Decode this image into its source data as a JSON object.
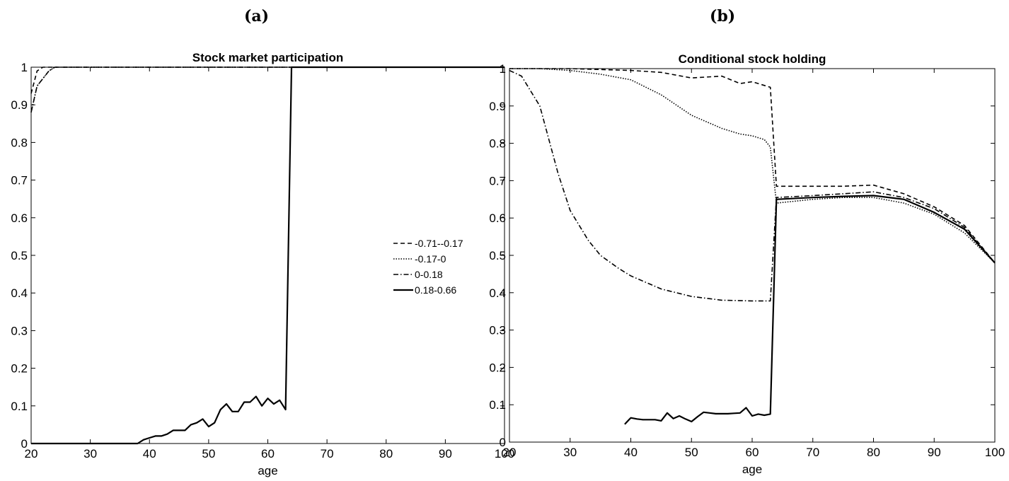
{
  "panels": {
    "a_label": "(a)",
    "b_label": "(b)"
  },
  "chart_data": [
    {
      "type": "line",
      "title": "Stock market participation",
      "xlabel": "age",
      "ylabel": "",
      "xlim": [
        20,
        100
      ],
      "ylim": [
        0,
        1
      ],
      "xticks": [
        20,
        30,
        40,
        50,
        60,
        70,
        80,
        90,
        100
      ],
      "yticks": [
        0,
        0.1,
        0.2,
        0.3,
        0.4,
        0.5,
        0.6,
        0.7,
        0.8,
        0.9,
        1
      ],
      "xtick_labels": [
        "20",
        "30",
        "40",
        "50",
        "60",
        "70",
        "80",
        "90",
        "100"
      ],
      "ytick_labels": [
        "0",
        "0.1",
        "0.2",
        "0.3",
        "0.4",
        "0.5",
        "0.6",
        "0.7",
        "0.8",
        "0.9",
        "1"
      ],
      "grid": false,
      "legend_position": "right",
      "series": [
        {
          "name": "-0.71--0.17",
          "style": "dashed",
          "x": [
            20,
            21,
            22,
            23,
            24,
            25,
            100
          ],
          "y": [
            0.93,
            0.99,
            1,
            1,
            1,
            1,
            1
          ]
        },
        {
          "name": "-0.17-0",
          "style": "dotted",
          "x": [
            20,
            21,
            22,
            23,
            24,
            25,
            100
          ],
          "y": [
            0.88,
            0.95,
            0.97,
            0.99,
            1,
            1,
            1
          ]
        },
        {
          "name": "0-0.18",
          "style": "dashdot",
          "x": [
            20,
            21,
            22,
            23,
            24,
            25,
            100
          ],
          "y": [
            0.88,
            0.95,
            0.97,
            0.99,
            1,
            1,
            1
          ]
        },
        {
          "name": "0.18-0.66",
          "style": "solid",
          "x": [
            20,
            38,
            39,
            40,
            41,
            42,
            43,
            44,
            45,
            46,
            47,
            48,
            49,
            50,
            51,
            52,
            53,
            54,
            55,
            56,
            57,
            58,
            59,
            60,
            61,
            62,
            63,
            64,
            100
          ],
          "y": [
            0,
            0,
            0.01,
            0.015,
            0.02,
            0.02,
            0.025,
            0.035,
            0.035,
            0.035,
            0.05,
            0.055,
            0.065,
            0.045,
            0.055,
            0.09,
            0.105,
            0.085,
            0.085,
            0.11,
            0.11,
            0.125,
            0.1,
            0.12,
            0.105,
            0.115,
            0.09,
            1,
            1
          ]
        }
      ]
    },
    {
      "type": "line",
      "title": "Conditional stock holding",
      "xlabel": "age",
      "ylabel": "",
      "xlim": [
        20,
        100
      ],
      "ylim": [
        0,
        1
      ],
      "xticks": [
        20,
        30,
        40,
        50,
        60,
        70,
        80,
        90,
        100
      ],
      "yticks": [
        0,
        0.1,
        0.2,
        0.3,
        0.4,
        0.5,
        0.6,
        0.7,
        0.8,
        0.9,
        1
      ],
      "xtick_labels": [
        "20",
        "30",
        "40",
        "50",
        "60",
        "70",
        "80",
        "90",
        "100"
      ],
      "ytick_labels": [
        "0",
        "0.1",
        "0.2",
        "0.3",
        "0.4",
        "0.5",
        "0.6",
        "0.7",
        "0.8",
        "0.9",
        "1"
      ],
      "grid": false,
      "series": [
        {
          "name": "-0.71--0.17",
          "style": "dashed",
          "x": [
            20,
            30,
            40,
            45,
            50,
            55,
            58,
            60,
            63,
            64,
            70,
            75,
            80,
            85,
            90,
            95,
            100
          ],
          "y": [
            1,
            1,
            0.995,
            0.99,
            0.975,
            0.98,
            0.96,
            0.965,
            0.95,
            0.685,
            0.685,
            0.685,
            0.688,
            0.665,
            0.63,
            0.58,
            0.48
          ]
        },
        {
          "name": "-0.17-0",
          "style": "dotted",
          "x": [
            20,
            25,
            30,
            35,
            40,
            45,
            50,
            55,
            58,
            60,
            62,
            63,
            64,
            70,
            75,
            80,
            85,
            90,
            95,
            100
          ],
          "y": [
            1,
            1,
            0.995,
            0.985,
            0.97,
            0.93,
            0.875,
            0.84,
            0.825,
            0.82,
            0.81,
            0.79,
            0.64,
            0.65,
            0.655,
            0.655,
            0.64,
            0.61,
            0.56,
            0.48
          ]
        },
        {
          "name": "0-0.18",
          "style": "dashdot",
          "x": [
            20,
            22,
            25,
            28,
            30,
            33,
            35,
            38,
            40,
            45,
            50,
            55,
            60,
            63,
            64,
            70,
            75,
            80,
            85,
            90,
            95,
            100
          ],
          "y": [
            0.995,
            0.98,
            0.9,
            0.72,
            0.62,
            0.54,
            0.5,
            0.465,
            0.445,
            0.41,
            0.39,
            0.38,
            0.378,
            0.378,
            0.655,
            0.66,
            0.665,
            0.67,
            0.655,
            0.625,
            0.575,
            0.48
          ]
        },
        {
          "name": "0.18-0.66",
          "style": "solid",
          "x": [
            39,
            40,
            41,
            42,
            43,
            44,
            45,
            46,
            47,
            48,
            49,
            50,
            51,
            52,
            53,
            54,
            55,
            56,
            57,
            58,
            59,
            60,
            61,
            62,
            63,
            64,
            70,
            75,
            80,
            85,
            90,
            95,
            100
          ],
          "y": [
            0.048,
            0.065,
            0.062,
            0.06,
            0.06,
            0.06,
            0.057,
            0.078,
            0.063,
            0.07,
            0.062,
            0.055,
            0.068,
            0.08,
            0.078,
            0.076,
            0.076,
            0.076,
            0.077,
            0.078,
            0.092,
            0.07,
            0.075,
            0.072,
            0.075,
            0.65,
            0.655,
            0.658,
            0.66,
            0.65,
            0.615,
            0.57,
            0.48
          ]
        }
      ]
    }
  ]
}
